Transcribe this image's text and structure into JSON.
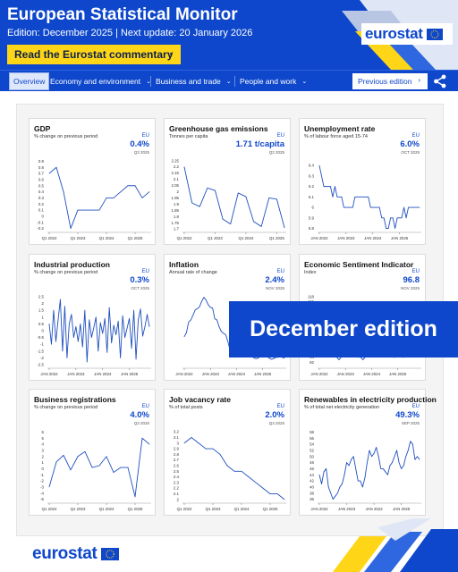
{
  "header": {
    "title": "European Statistical Monitor",
    "subtitle": "Edition: December 2025 | Next update: 20 January 2026",
    "commentary_label": "Read the Eurostat commentary",
    "logo_text": "eurostat",
    "brand_blue": "#0e47cb",
    "accent_yellow": "#ffd617"
  },
  "nav": {
    "items": [
      {
        "label": "Overview",
        "active": true
      },
      {
        "label": "Economy and environment",
        "dropdown": true
      },
      {
        "label": "Business and trade",
        "dropdown": true
      },
      {
        "label": "People and work",
        "dropdown": true
      }
    ],
    "previous_label": "Previous edition",
    "share_icon": "share-icon"
  },
  "banner": {
    "text": "December edition"
  },
  "footer": {
    "logo_text": "eurostat"
  },
  "cards": [
    {
      "title": "GDP",
      "subtitle": "% change on previous period",
      "geo": "EU",
      "value": "0.4%",
      "period": "Q3 2025"
    },
    {
      "title": "Greenhouse gas emissions",
      "subtitle": "Tonnes per capita",
      "geo": "EU",
      "value": "1.71 t/capita",
      "period": "Q2 2025"
    },
    {
      "title": "Unemployment rate",
      "subtitle": "% of labour force aged 15-74",
      "geo": "EU",
      "value": "6.0%",
      "period": "OCT 2025"
    },
    {
      "title": "Industrial production",
      "subtitle": "% change on previous period",
      "geo": "EU",
      "value": "0.3%",
      "period": "OCT 2025"
    },
    {
      "title": "Inflation",
      "subtitle": "Annual rate of change",
      "geo": "EU",
      "value": "2.4%",
      "period": "NOV 2025"
    },
    {
      "title": "Economic Sentiment Indicator",
      "subtitle": "Index",
      "geo": "EU",
      "value": "96.8",
      "period": "NOV 2025"
    },
    {
      "title": "Business registrations",
      "subtitle": "% change on previous period",
      "geo": "EU",
      "value": "4.0%",
      "period": "Q3 2025"
    },
    {
      "title": "Job vacancy rate",
      "subtitle": "% of total posts",
      "geo": "EU",
      "value": "2.0%",
      "period": "Q3 2025"
    },
    {
      "title": "Renewables in electricity production",
      "subtitle": "% of total net electricity generation",
      "geo": "EU",
      "value": "49.3%",
      "period": "SEP 2025"
    }
  ],
  "chart_data": [
    {
      "type": "line",
      "ylim": [
        -0.25,
        0.95
      ],
      "yticks": [
        "0.9",
        "0.8",
        "0.7",
        "0.6",
        "0.5",
        "0.4",
        "0.3",
        "0.2",
        "0.1",
        "0",
        "-0.1",
        "-0.2"
      ],
      "ytick_values": [
        0.9,
        0.8,
        0.7,
        0.6,
        0.5,
        0.4,
        0.3,
        0.2,
        0.1,
        0,
        -0.1,
        -0.2
      ],
      "xticks": [
        "Q1 2022",
        "Q1 2023",
        "Q1 2024",
        "Q1 2025"
      ],
      "xtick_index": [
        0,
        4,
        8,
        12
      ],
      "n": 15,
      "values": [
        0.7,
        0.8,
        0.4,
        -0.2,
        0.1,
        0.1,
        0.1,
        0.1,
        0.3,
        0.3,
        0.4,
        0.5,
        0.5,
        0.3,
        0.4
      ]
    },
    {
      "type": "line",
      "ylim": [
        1.68,
        2.27
      ],
      "yticks": [
        "2.25",
        "2.2",
        "2.15",
        "2.1",
        "2.05",
        "2",
        "1.95",
        "1.9",
        "1.85",
        "1.8",
        "1.75",
        "1.7"
      ],
      "ytick_values": [
        2.25,
        2.2,
        2.15,
        2.1,
        2.05,
        2,
        1.95,
        1.9,
        1.85,
        1.8,
        1.75,
        1.7
      ],
      "xticks": [
        "Q1 2022",
        "Q1 2023",
        "Q1 2024",
        "Q1 2025"
      ],
      "xtick_index": [
        0,
        4,
        8,
        12
      ],
      "n": 14,
      "values": [
        2.2,
        1.91,
        1.88,
        2.03,
        2.01,
        1.78,
        1.74,
        1.99,
        1.96,
        1.76,
        1.72,
        1.95,
        1.94,
        1.71
      ]
    },
    {
      "type": "line",
      "ylim": [
        5.77,
        6.47
      ],
      "yticks": [
        "6.4",
        "6.3",
        "6.2",
        "6.1",
        "6",
        "5.9",
        "5.8"
      ],
      "ytick_values": [
        6.4,
        6.3,
        6.2,
        6.1,
        6,
        5.9,
        5.8
      ],
      "xticks": [
        "JAN 2022",
        "JAN 2023",
        "JAN 2024",
        "JAN 2025"
      ],
      "xtick_index": [
        0,
        12,
        24,
        36
      ],
      "n": 46,
      "values": [
        6.4,
        6.3,
        6.2,
        6.2,
        6.2,
        6.2,
        6.1,
        6.2,
        6.1,
        6.1,
        6.1,
        6.0,
        6.0,
        6.0,
        6.0,
        6.0,
        6.1,
        6.1,
        6.1,
        6.1,
        6.1,
        6.1,
        6.1,
        6.0,
        6.0,
        6.0,
        6.0,
        6.0,
        5.9,
        5.9,
        5.8,
        5.8,
        5.9,
        5.9,
        5.8,
        5.9,
        5.9,
        5.9,
        6.0,
        5.9,
        6.0,
        6.0,
        6.0,
        6.0,
        6.0,
        6.0
      ]
    },
    {
      "type": "line",
      "ylim": [
        -2.7,
        2.7
      ],
      "yticks": [
        "2.5",
        "2",
        "1.5",
        "1",
        "0.5",
        "0",
        "-0.5",
        "-1",
        "-1.5",
        "-2",
        "-2.5"
      ],
      "ytick_values": [
        2.5,
        2,
        1.5,
        1,
        0.5,
        0,
        -0.5,
        -1,
        -1.5,
        -2,
        -2.5
      ],
      "xticks": [
        "JAN 2022",
        "JAN 2023",
        "JAN 2024",
        "JAN 2025"
      ],
      "xtick_index": [
        0,
        12,
        24,
        36
      ],
      "n": 46,
      "values": [
        0.5,
        -1,
        1.5,
        -0.8,
        0.8,
        2.3,
        -1.5,
        1.8,
        -2,
        0.5,
        1.2,
        -0.5,
        0.3,
        -0.8,
        0.5,
        -1.2,
        1.5,
        -2.3,
        0.8,
        -0.5,
        0.2,
        1.0,
        -1.5,
        0.6,
        -0.2,
        0.9,
        -1.6,
        1.7,
        -0.9,
        0.4,
        -0.3,
        0.7,
        -2.0,
        1.1,
        -0.5,
        0.2,
        0.9,
        -1.3,
        1.5,
        -2.1,
        0.8,
        1.6,
        -0.4,
        0.3,
        1.2,
        0.3
      ]
    },
    {
      "type": "line",
      "ylim": [
        1,
        12
      ],
      "yticks": [],
      "ytick_values": [],
      "xticks": [
        "JAN 2022",
        "JAN 2023",
        "JAN 2024",
        "JAN 2025"
      ],
      "xtick_index": [
        0,
        12,
        24,
        36
      ],
      "n": 47,
      "values": [
        5.6,
        6.2,
        7.8,
        8.1,
        8.8,
        9.6,
        9.8,
        10.1,
        10.9,
        11.5,
        11.1,
        10.4,
        10.0,
        9.9,
        8.3,
        8.1,
        7.1,
        6.4,
        6.1,
        5.9,
        4.9,
        3.6,
        3.1,
        3.4,
        3.1,
        2.8,
        2.6,
        2.7,
        2.6,
        2.6,
        2.8,
        2.8,
        2.4,
        2.3,
        2.4,
        2.7,
        2.8,
        2.8,
        2.6,
        2.4,
        2.2,
        2.3,
        2.5,
        2.5,
        2.6,
        2.5,
        2.4
      ]
    },
    {
      "type": "line",
      "ylim": [
        90,
        119
      ],
      "yticks": [
        "118",
        "116",
        "114",
        "112",
        "110",
        "108",
        "106",
        "104",
        "102",
        "100",
        "98",
        "96",
        "94",
        "92"
      ],
      "ytick_values": [
        118,
        116,
        114,
        112,
        110,
        108,
        106,
        104,
        102,
        100,
        98,
        96,
        94,
        92
      ],
      "xticks": [
        "JAN 2022",
        "JAN 2023",
        "JAN 2024",
        "JAN 2025"
      ],
      "xtick_index": [
        0,
        12,
        24,
        36
      ],
      "n": 47,
      "values": [
        112,
        112,
        109,
        105,
        104,
        103,
        100,
        97,
        94,
        93,
        94,
        96,
        99,
        100,
        99,
        97,
        96,
        95,
        94,
        94,
        93,
        94,
        95,
        96,
        96,
        96,
        96,
        96,
        96,
        95,
        96,
        96,
        95,
        95,
        94,
        94,
        95,
        95,
        94,
        94,
        95,
        95,
        95,
        95,
        95,
        96,
        97
      ]
    },
    {
      "type": "line",
      "ylim": [
        -5.5,
        6.5
      ],
      "yticks": [
        "6",
        "5",
        "4",
        "3",
        "2",
        "1",
        "0",
        "-1",
        "-2",
        "-3",
        "-4",
        "-5"
      ],
      "ytick_values": [
        6,
        5,
        4,
        3,
        2,
        1,
        0,
        -1,
        -2,
        -3,
        -4,
        -5
      ],
      "xticks": [
        "Q1 2022",
        "Q1 2023",
        "Q1 2024",
        "Q1 2025"
      ],
      "xtick_index": [
        0,
        4,
        8,
        12
      ],
      "n": 15,
      "values": [
        -3,
        1.1,
        2.2,
        -0.2,
        2.0,
        2.8,
        0.2,
        0.5,
        2.0,
        -0.6,
        0.2,
        0.2,
        -4.6,
        5.0,
        4.0
      ]
    },
    {
      "type": "line",
      "ylim": [
        1.95,
        3.25
      ],
      "yticks": [
        "3.2",
        "3.1",
        "3",
        "2.9",
        "2.8",
        "2.7",
        "2.6",
        "2.5",
        "2.4",
        "2.3",
        "2.2",
        "2.1",
        "2"
      ],
      "ytick_values": [
        3.2,
        3.1,
        3,
        2.9,
        2.8,
        2.7,
        2.6,
        2.5,
        2.4,
        2.3,
        2.2,
        2.1,
        2
      ],
      "xticks": [
        "Q1 2022",
        "Q1 2023",
        "Q1 2024",
        "Q1 2025"
      ],
      "xtick_index": [
        0,
        4,
        8,
        12
      ],
      "n": 15,
      "values": [
        3.0,
        3.1,
        3.0,
        2.9,
        2.9,
        2.8,
        2.6,
        2.5,
        2.5,
        2.4,
        2.3,
        2.2,
        2.1,
        2.1,
        2.0
      ]
    },
    {
      "type": "line",
      "ylim": [
        35,
        59
      ],
      "yticks": [
        "58",
        "56",
        "54",
        "52",
        "50",
        "48",
        "46",
        "44",
        "42",
        "40",
        "38",
        "36"
      ],
      "ytick_values": [
        58,
        56,
        54,
        52,
        50,
        48,
        46,
        44,
        42,
        40,
        38,
        36
      ],
      "xticks": [
        "JAN 2022",
        "JAN 2023",
        "JAN 2024",
        "JAN 2025"
      ],
      "xtick_index": [
        0,
        12,
        24,
        36
      ],
      "n": 45,
      "values": [
        44,
        41,
        45,
        46,
        40,
        38,
        36,
        37,
        38,
        40,
        41,
        44,
        48,
        47,
        49,
        50,
        46,
        42,
        42,
        40,
        43,
        48,
        52,
        50,
        51,
        53,
        50,
        46,
        46,
        45,
        44,
        47,
        48,
        50,
        52,
        48,
        46,
        47,
        50,
        52,
        55,
        54,
        49,
        50,
        49
      ]
    }
  ]
}
